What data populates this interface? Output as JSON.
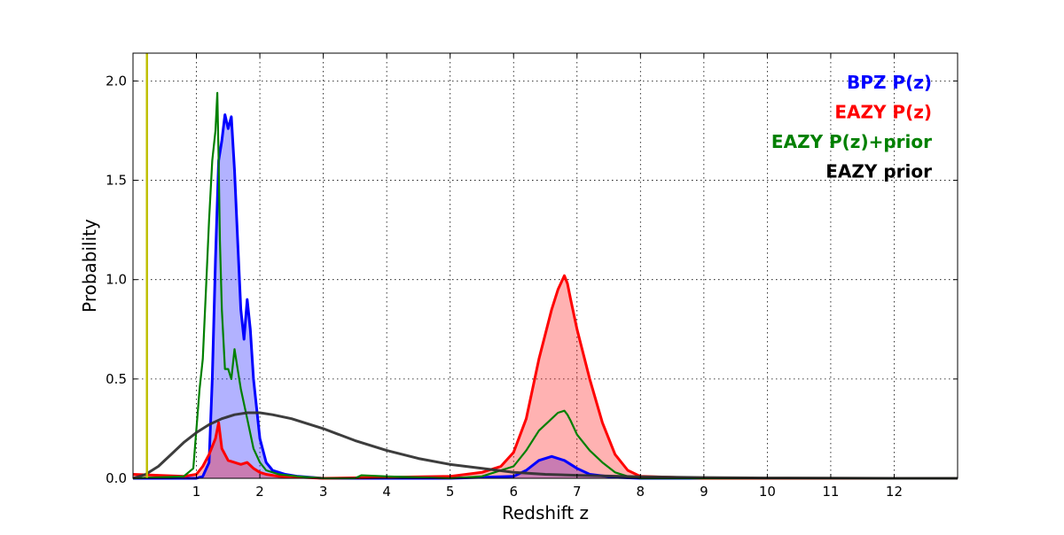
{
  "chart_data": {
    "type": "line",
    "xlabel": "Redshift z",
    "ylabel": "Probability",
    "xlim": [
      0,
      13
    ],
    "ylim": [
      0,
      2.14
    ],
    "x_ticks": [
      1,
      2,
      3,
      4,
      5,
      6,
      7,
      8,
      9,
      10,
      11,
      12
    ],
    "y_ticks": [
      0.0,
      0.5,
      1.0,
      1.5,
      2.0
    ],
    "x_tick_labels": [
      "1",
      "2",
      "3",
      "4",
      "5",
      "6",
      "7",
      "8",
      "9",
      "10",
      "11",
      "12"
    ],
    "y_tick_labels": [
      "0.0",
      "0.5",
      "1.0",
      "1.5",
      "2.0"
    ],
    "grid": true,
    "legend_position": "top-right",
    "vertical_line": {
      "x": 0.22,
      "color": "#bfbf00"
    },
    "series": [
      {
        "name": "BPZ P(z)",
        "color": "#0000ff",
        "fill": true,
        "x": [
          0.0,
          1.0,
          1.1,
          1.2,
          1.25,
          1.3,
          1.35,
          1.4,
          1.45,
          1.5,
          1.55,
          1.6,
          1.65,
          1.7,
          1.75,
          1.8,
          1.85,
          1.9,
          1.95,
          2.0,
          2.1,
          2.2,
          2.4,
          2.6,
          3.0,
          5.0,
          6.0,
          6.2,
          6.4,
          6.6,
          6.8,
          7.0,
          7.2,
          7.6,
          8.0,
          13.0
        ],
        "y": [
          0.0,
          0.0,
          0.01,
          0.08,
          0.5,
          1.1,
          1.6,
          1.7,
          1.83,
          1.76,
          1.82,
          1.55,
          1.2,
          0.85,
          0.7,
          0.9,
          0.75,
          0.5,
          0.35,
          0.2,
          0.08,
          0.04,
          0.02,
          0.01,
          0.0,
          0.0,
          0.01,
          0.04,
          0.09,
          0.11,
          0.09,
          0.05,
          0.02,
          0.005,
          0.0,
          0.0
        ]
      },
      {
        "name": "EAZY P(z)",
        "color": "#ff0000",
        "fill": true,
        "x": [
          0.0,
          0.8,
          1.0,
          1.1,
          1.2,
          1.3,
          1.35,
          1.4,
          1.5,
          1.6,
          1.7,
          1.8,
          1.9,
          2.0,
          2.1,
          2.3,
          3.0,
          5.0,
          5.5,
          5.8,
          6.0,
          6.2,
          6.4,
          6.6,
          6.7,
          6.8,
          6.85,
          6.9,
          7.0,
          7.2,
          7.4,
          7.6,
          7.8,
          8.0,
          9.0,
          13.0
        ],
        "y": [
          0.02,
          0.01,
          0.02,
          0.06,
          0.12,
          0.2,
          0.28,
          0.15,
          0.09,
          0.08,
          0.07,
          0.08,
          0.05,
          0.03,
          0.02,
          0.01,
          0.0,
          0.01,
          0.03,
          0.06,
          0.13,
          0.3,
          0.6,
          0.85,
          0.95,
          1.02,
          0.98,
          0.9,
          0.75,
          0.5,
          0.28,
          0.12,
          0.04,
          0.01,
          0.0,
          0.0
        ]
      },
      {
        "name": "EAZY P(z)+prior",
        "color": "#008000",
        "fill": false,
        "x": [
          0.0,
          0.8,
          0.95,
          1.05,
          1.1,
          1.15,
          1.2,
          1.25,
          1.3,
          1.33,
          1.35,
          1.37,
          1.4,
          1.45,
          1.5,
          1.55,
          1.6,
          1.65,
          1.7,
          1.8,
          1.9,
          2.0,
          2.1,
          2.3,
          2.6,
          3.0,
          3.5,
          3.6,
          4.0,
          5.0,
          5.5,
          6.0,
          6.2,
          6.4,
          6.6,
          6.7,
          6.8,
          6.85,
          6.9,
          7.0,
          7.2,
          7.4,
          7.6,
          7.8,
          8.0,
          13.0
        ],
        "y": [
          0.0,
          0.01,
          0.05,
          0.45,
          0.6,
          0.95,
          1.3,
          1.6,
          1.75,
          1.94,
          1.6,
          1.2,
          0.85,
          0.55,
          0.55,
          0.5,
          0.65,
          0.55,
          0.45,
          0.3,
          0.15,
          0.08,
          0.04,
          0.02,
          0.01,
          0.0,
          0.0,
          0.015,
          0.01,
          0.0,
          0.01,
          0.06,
          0.14,
          0.24,
          0.3,
          0.33,
          0.34,
          0.32,
          0.29,
          0.22,
          0.14,
          0.08,
          0.03,
          0.01,
          0.0,
          0.0
        ]
      },
      {
        "name": "EAZY prior",
        "color": "#333333",
        "fill": false,
        "x": [
          0.0,
          0.2,
          0.4,
          0.6,
          0.8,
          1.0,
          1.2,
          1.4,
          1.6,
          1.8,
          2.0,
          2.2,
          2.5,
          3.0,
          3.5,
          4.0,
          4.5,
          5.0,
          5.5,
          6.0,
          6.5,
          7.0,
          8.0,
          9.0,
          10.0,
          11.0,
          12.0,
          13.0
        ],
        "y": [
          0.0,
          0.02,
          0.06,
          0.12,
          0.18,
          0.23,
          0.27,
          0.3,
          0.32,
          0.33,
          0.33,
          0.32,
          0.3,
          0.25,
          0.19,
          0.14,
          0.1,
          0.07,
          0.05,
          0.03,
          0.02,
          0.015,
          0.008,
          0.004,
          0.002,
          0.001,
          0.0,
          0.0
        ]
      }
    ]
  }
}
